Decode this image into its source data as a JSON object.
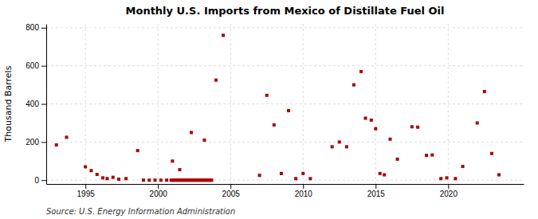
{
  "chart_data": {
    "type": "scatter",
    "title": "Monthly U.S. Imports from Mexico of Distillate Fuel Oil",
    "ylabel": "Thousand Barrels",
    "annotations": [
      "Source: U.S. Energy Information Administration"
    ],
    "color": "#aa0000",
    "marker": "square",
    "grid": true,
    "xlim": [
      1992.3,
      2025.2
    ],
    "ylim": [
      -20,
      820
    ],
    "xticks": [
      1995,
      2000,
      2005,
      2010,
      2015,
      2020
    ],
    "yticks": [
      0,
      200,
      400,
      600,
      800
    ],
    "x": [
      1993.0,
      1993.7,
      1995.0,
      1995.4,
      1995.8,
      1996.2,
      1996.5,
      1996.9,
      1997.3,
      1997.8,
      1998.6,
      1999.0,
      1999.4,
      1999.8,
      2000.2,
      2000.6,
      2000.9,
      2001.0,
      2001.1,
      2001.2,
      2001.3,
      2001.4,
      2001.5,
      2001.6,
      2001.7,
      2001.8,
      2001.9,
      2002.0,
      2002.1,
      2002.2,
      2002.3,
      2002.4,
      2002.5,
      2002.6,
      2002.7,
      2002.8,
      2002.9,
      2003.0,
      2003.1,
      2003.2,
      2003.3,
      2003.4,
      2003.5,
      2003.6,
      2003.7,
      2001.0,
      2001.5,
      2002.3,
      2003.2,
      2004.0,
      2004.5,
      2007.0,
      2007.5,
      2008.0,
      2008.5,
      2009.0,
      2009.5,
      2010.0,
      2010.5,
      2012.0,
      2012.5,
      2013.0,
      2013.5,
      2014.0,
      2014.3,
      2014.7,
      2015.0,
      2015.3,
      2015.6,
      2016.0,
      2016.5,
      2017.5,
      2017.9,
      2018.5,
      2018.9,
      2019.5,
      2019.9,
      2020.5,
      2021.0,
      2022.0,
      2022.5,
      2023.0,
      2023.5
    ],
    "values": [
      185,
      225,
      70,
      50,
      30,
      12,
      8,
      15,
      5,
      8,
      155,
      0,
      0,
      0,
      0,
      0,
      0,
      0,
      0,
      0,
      0,
      0,
      0,
      0,
      0,
      0,
      0,
      0,
      0,
      0,
      0,
      0,
      0,
      0,
      0,
      0,
      0,
      0,
      0,
      0,
      0,
      0,
      0,
      0,
      0,
      100,
      55,
      250,
      210,
      525,
      760,
      25,
      445,
      290,
      35,
      365,
      8,
      35,
      8,
      175,
      200,
      175,
      500,
      570,
      325,
      315,
      270,
      35,
      28,
      215,
      110,
      280,
      278,
      130,
      132,
      8,
      12,
      8,
      72,
      300,
      465,
      140,
      28
    ]
  }
}
